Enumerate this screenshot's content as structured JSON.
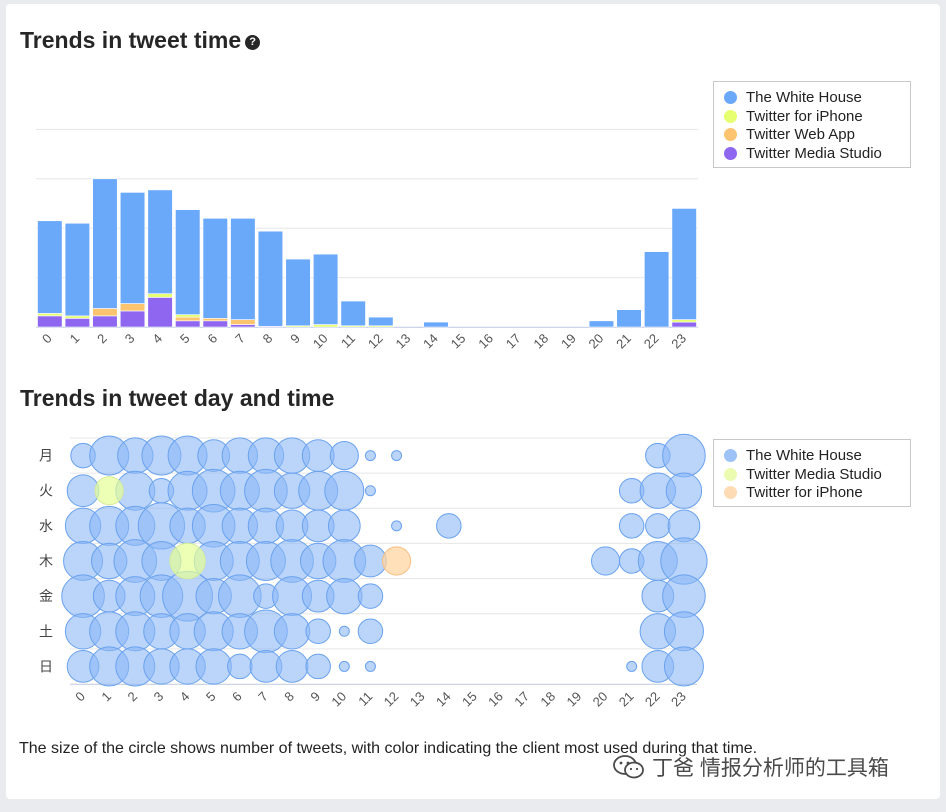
{
  "section1": {
    "title": "Trends in tweet time",
    "help_glyph": "?"
  },
  "section2": {
    "title": "Trends in tweet day and time"
  },
  "caption": "The size of the circle shows number of tweets, with color indicating the client most used during that time.",
  "watermark": "丁爸 情报分析师的工具箱",
  "chart_data": [
    {
      "type": "bar",
      "stacked": true,
      "title": "Trends in tweet time",
      "categories": [
        "0",
        "1",
        "2",
        "3",
        "4",
        "5",
        "6",
        "7",
        "8",
        "9",
        "10",
        "11",
        "12",
        "13",
        "14",
        "15",
        "16",
        "17",
        "18",
        "19",
        "20",
        "21",
        "22",
        "23"
      ],
      "ylim": [
        0,
        100
      ],
      "gridlines": [
        0,
        20,
        40,
        60,
        80
      ],
      "series": [
        {
          "name": "Twitter Media Studio",
          "color": "#8e66f0",
          "values": [
            4.5,
            3.5,
            4.5,
            6.5,
            12,
            2.5,
            2.5,
            1.0,
            0.3,
            0,
            0,
            0,
            0,
            0,
            0,
            0,
            0,
            0,
            0,
            0,
            0,
            0,
            0,
            2
          ]
        },
        {
          "name": "Twitter Web App",
          "color": "#fcc46e",
          "values": [
            0,
            0,
            3,
            3,
            0,
            1.5,
            1,
            2,
            0,
            0,
            0,
            0,
            0,
            0,
            0,
            0,
            0,
            0,
            0,
            0,
            0,
            0,
            0,
            0
          ]
        },
        {
          "name": "Twitter for iPhone",
          "color": "#e6ff70",
          "values": [
            1,
            1,
            0,
            0,
            1.5,
            1,
            0,
            0,
            0,
            0.5,
            1,
            0.5,
            0.5,
            0,
            0,
            0,
            0,
            0,
            0,
            0,
            0,
            0,
            0,
            1
          ]
        },
        {
          "name": "The White House",
          "color": "#6aa8f9",
          "values": [
            37.5,
            37.5,
            52.5,
            45,
            42,
            42.5,
            40.5,
            41,
            38.5,
            27,
            28.5,
            10,
            3.5,
            0,
            2,
            0,
            0,
            0,
            0,
            0,
            2.5,
            7,
            30.5,
            45
          ]
        }
      ],
      "legend": {
        "position": "top-right",
        "items": [
          {
            "label": "The White House",
            "color": "#6aa8f9"
          },
          {
            "label": "Twitter for iPhone",
            "color": "#e6ff70"
          },
          {
            "label": "Twitter Web App",
            "color": "#fcc46e"
          },
          {
            "label": "Twitter Media Studio",
            "color": "#8e66f0"
          }
        ]
      }
    },
    {
      "type": "bubble",
      "title": "Trends in tweet day and time",
      "x_categories": [
        "0",
        "1",
        "2",
        "3",
        "4",
        "5",
        "6",
        "7",
        "8",
        "9",
        "10",
        "11",
        "12",
        "13",
        "14",
        "15",
        "16",
        "17",
        "18",
        "19",
        "20",
        "21",
        "22",
        "23"
      ],
      "y_categories": [
        "月",
        "火",
        "水",
        "木",
        "金",
        "土",
        "日"
      ],
      "client_colors": {
        "wh": {
          "name": "The White House",
          "fill": "rgba(140,183,247,0.6)",
          "stroke": "#6aa2ee"
        },
        "ms": {
          "name": "Twitter Media Studio",
          "fill": "rgba(230,255,150,0.7)",
          "stroke": "#d6ec9a"
        },
        "ip": {
          "name": "Twitter for iPhone",
          "fill": "rgba(255,213,160,0.75)",
          "stroke": "#f7bd82"
        }
      },
      "bubbles": [
        [
          0,
          0,
          5,
          "wh"
        ],
        [
          1,
          0,
          9,
          "wh"
        ],
        [
          2,
          0,
          8,
          "wh"
        ],
        [
          3,
          0,
          9,
          "wh"
        ],
        [
          4,
          0,
          9,
          "wh"
        ],
        [
          5,
          0,
          7,
          "wh"
        ],
        [
          6,
          0,
          8,
          "wh"
        ],
        [
          7,
          0,
          8,
          "wh"
        ],
        [
          8,
          0,
          8,
          "wh"
        ],
        [
          9,
          0,
          7,
          "wh"
        ],
        [
          10,
          0,
          6,
          "wh"
        ],
        [
          11,
          0,
          1,
          "wh"
        ],
        [
          12,
          0,
          1,
          "wh"
        ],
        [
          22,
          0,
          5,
          "wh"
        ],
        [
          23,
          0,
          10,
          "wh"
        ],
        [
          0,
          1,
          7,
          "wh"
        ],
        [
          1,
          1,
          6,
          "ms"
        ],
        [
          2,
          1,
          9,
          "wh"
        ],
        [
          3,
          1,
          5,
          "wh"
        ],
        [
          4,
          1,
          9,
          "wh"
        ],
        [
          5,
          1,
          10,
          "wh"
        ],
        [
          6,
          1,
          9,
          "wh"
        ],
        [
          7,
          1,
          10,
          "wh"
        ],
        [
          8,
          1,
          8,
          "wh"
        ],
        [
          9,
          1,
          9,
          "wh"
        ],
        [
          10,
          1,
          9,
          "wh"
        ],
        [
          11,
          1,
          1,
          "wh"
        ],
        [
          21,
          1,
          5,
          "wh"
        ],
        [
          22,
          1,
          8,
          "wh"
        ],
        [
          23,
          1,
          8,
          "wh"
        ],
        [
          0,
          2,
          8,
          "wh"
        ],
        [
          1,
          2,
          9,
          "wh"
        ],
        [
          2,
          2,
          9,
          "wh"
        ],
        [
          3,
          2,
          11,
          "wh"
        ],
        [
          4,
          2,
          8,
          "wh"
        ],
        [
          5,
          2,
          10,
          "wh"
        ],
        [
          6,
          2,
          8,
          "wh"
        ],
        [
          7,
          2,
          8,
          "wh"
        ],
        [
          8,
          2,
          7,
          "wh"
        ],
        [
          9,
          2,
          7,
          "wh"
        ],
        [
          10,
          2,
          7,
          "wh"
        ],
        [
          12,
          2,
          1,
          "wh"
        ],
        [
          14,
          2,
          5,
          "wh"
        ],
        [
          21,
          2,
          5,
          "wh"
        ],
        [
          22,
          2,
          5,
          "wh"
        ],
        [
          23,
          2,
          7,
          "wh"
        ],
        [
          0,
          3,
          9,
          "wh"
        ],
        [
          1,
          3,
          8,
          "wh"
        ],
        [
          2,
          3,
          10,
          "wh"
        ],
        [
          3,
          3,
          9,
          "wh"
        ],
        [
          4,
          3,
          8,
          "ms"
        ],
        [
          5,
          3,
          9,
          "wh"
        ],
        [
          6,
          3,
          9,
          "wh"
        ],
        [
          7,
          3,
          9,
          "wh"
        ],
        [
          8,
          3,
          10,
          "wh"
        ],
        [
          9,
          3,
          8,
          "wh"
        ],
        [
          10,
          3,
          10,
          "wh"
        ],
        [
          11,
          3,
          7,
          "wh"
        ],
        [
          12,
          3,
          6,
          "ip"
        ],
        [
          20,
          3,
          6,
          "wh"
        ],
        [
          21,
          3,
          5,
          "wh"
        ],
        [
          22,
          3,
          9,
          "wh"
        ],
        [
          23,
          3,
          11,
          "wh"
        ],
        [
          0,
          4,
          10,
          "wh"
        ],
        [
          1,
          4,
          7,
          "wh"
        ],
        [
          2,
          4,
          9,
          "wh"
        ],
        [
          3,
          4,
          10,
          "wh"
        ],
        [
          4,
          4,
          12,
          "wh"
        ],
        [
          5,
          4,
          8,
          "wh"
        ],
        [
          6,
          4,
          10,
          "wh"
        ],
        [
          7,
          4,
          5,
          "wh"
        ],
        [
          8,
          4,
          9,
          "wh"
        ],
        [
          9,
          4,
          7,
          "wh"
        ],
        [
          10,
          4,
          8,
          "wh"
        ],
        [
          11,
          4,
          5,
          "wh"
        ],
        [
          22,
          4,
          7,
          "wh"
        ],
        [
          23,
          4,
          10,
          "wh"
        ],
        [
          0,
          5,
          8,
          "wh"
        ],
        [
          1,
          5,
          9,
          "wh"
        ],
        [
          2,
          5,
          9,
          "wh"
        ],
        [
          3,
          5,
          8,
          "wh"
        ],
        [
          4,
          5,
          8,
          "wh"
        ],
        [
          5,
          5,
          9,
          "wh"
        ],
        [
          6,
          5,
          8,
          "wh"
        ],
        [
          7,
          5,
          10,
          "wh"
        ],
        [
          8,
          5,
          8,
          "wh"
        ],
        [
          9,
          5,
          5,
          "wh"
        ],
        [
          10,
          5,
          1,
          "wh"
        ],
        [
          11,
          5,
          5,
          "wh"
        ],
        [
          22,
          5,
          8,
          "wh"
        ],
        [
          23,
          5,
          9,
          "wh"
        ],
        [
          0,
          6,
          7,
          "wh"
        ],
        [
          1,
          6,
          9,
          "wh"
        ],
        [
          2,
          6,
          9,
          "wh"
        ],
        [
          3,
          6,
          8,
          "wh"
        ],
        [
          4,
          6,
          8,
          "wh"
        ],
        [
          5,
          6,
          8,
          "wh"
        ],
        [
          6,
          6,
          5,
          "wh"
        ],
        [
          7,
          6,
          7,
          "wh"
        ],
        [
          8,
          6,
          7,
          "wh"
        ],
        [
          9,
          6,
          5,
          "wh"
        ],
        [
          10,
          6,
          1,
          "wh"
        ],
        [
          11,
          6,
          1,
          "wh"
        ],
        [
          21,
          6,
          1,
          "wh"
        ],
        [
          22,
          6,
          7,
          "wh"
        ],
        [
          23,
          6,
          9,
          "wh"
        ]
      ],
      "legend": {
        "position": "top-right",
        "items": [
          {
            "label": "The White House",
            "color": "#9cc2f7"
          },
          {
            "label": "Twitter Media Studio",
            "color": "#ebfbb0"
          },
          {
            "label": "Twitter for iPhone",
            "color": "#fddbb4"
          }
        ]
      }
    }
  ]
}
